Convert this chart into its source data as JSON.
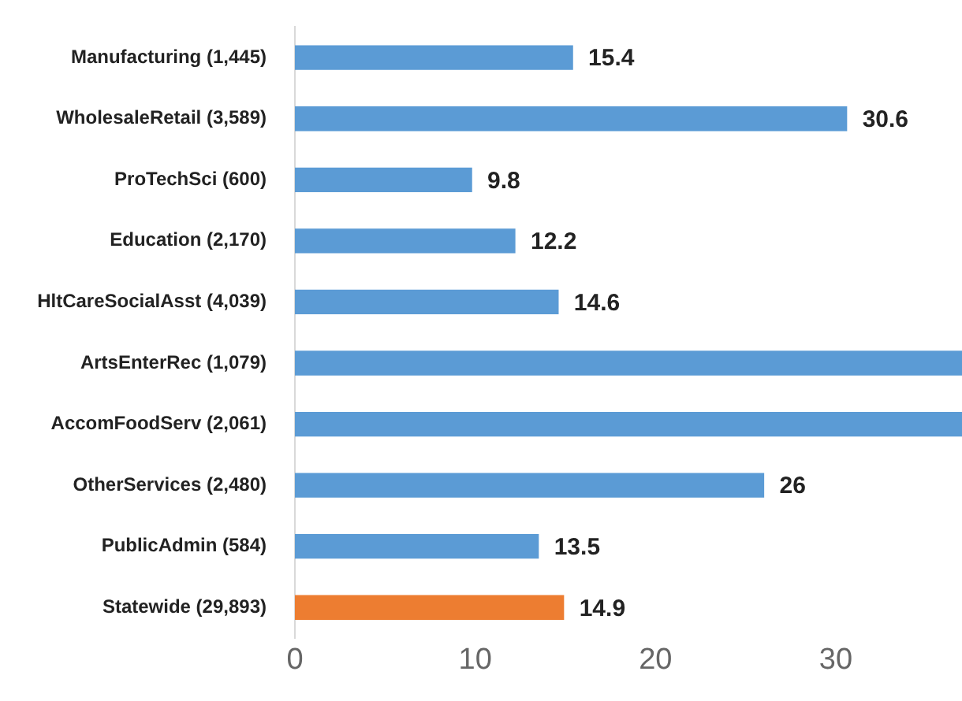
{
  "chart_data": {
    "type": "bar",
    "orientation": "horizontal",
    "categories": [
      "Manufacturing (1,445)",
      "WholesaleRetail (3,589)",
      "ProTechSci (600)",
      "Education (2,170)",
      "HltCareSocialAsst (4,039)",
      "ArtsEnterRec (1,079)",
      "AccomFoodServ (2,061)",
      "OtherServices (2,480)",
      "PublicAdmin (584)",
      "Statewide (29,893)"
    ],
    "values": [
      15.4,
      30.6,
      9.8,
      12.2,
      14.6,
      37,
      37,
      26,
      13.5,
      14.9
    ],
    "value_labels": [
      "15.4",
      "30.6",
      "9.8",
      "12.2",
      "14.6",
      null,
      null,
      "26",
      "13.5",
      "14.9"
    ],
    "colors": [
      "#5b9bd5",
      "#5b9bd5",
      "#5b9bd5",
      "#5b9bd5",
      "#5b9bd5",
      "#5b9bd5",
      "#5b9bd5",
      "#5b9bd5",
      "#5b9bd5",
      "#ed7d31"
    ],
    "xlim": [
      0,
      37
    ],
    "xticks": [
      0,
      10,
      20,
      30
    ],
    "grid": false,
    "legend": false
  }
}
